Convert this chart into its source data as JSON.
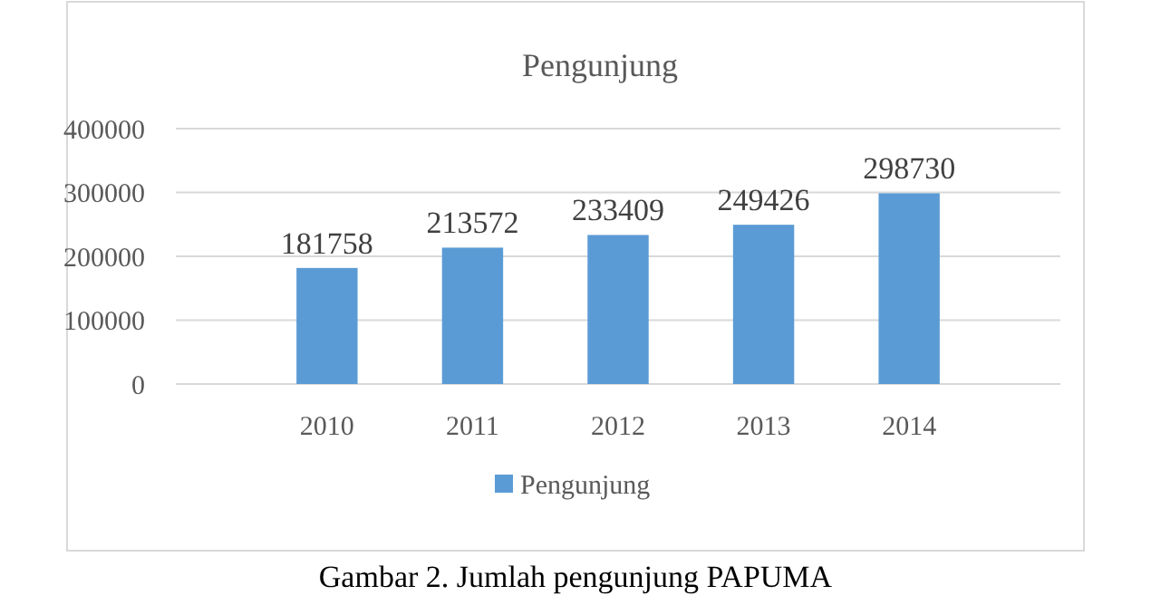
{
  "chart_data": {
    "type": "bar",
    "title": "Pengunjung",
    "categories": [
      "2010",
      "2011",
      "2012",
      "2013",
      "2014"
    ],
    "series": [
      {
        "name": "Pengunjung",
        "color": "#5b9bd5",
        "values": [
          181758,
          213572,
          233409,
          249426,
          298730
        ]
      }
    ],
    "ylim": [
      0,
      400000
    ],
    "yticks": [
      0,
      100000,
      200000,
      300000,
      400000
    ],
    "grid": "y",
    "legend": "bottom",
    "data_labels": true,
    "annotations": [
      "Gambar 2. Jumlah pengunjung PAPUMA"
    ]
  }
}
